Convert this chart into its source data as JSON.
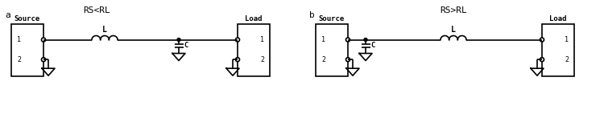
{
  "background_color": "#ffffff",
  "line_color": "#000000",
  "line_width": 1.2,
  "font_family": "monospace",
  "label_a": "a",
  "label_b": "b",
  "title_a": "RS<RL",
  "title_b": "RS>RL",
  "source_label": "Source",
  "load_label": "Load",
  "L_label": "L",
  "C_label": "C",
  "figw": 7.5,
  "figh": 1.57,
  "dpi": 100
}
